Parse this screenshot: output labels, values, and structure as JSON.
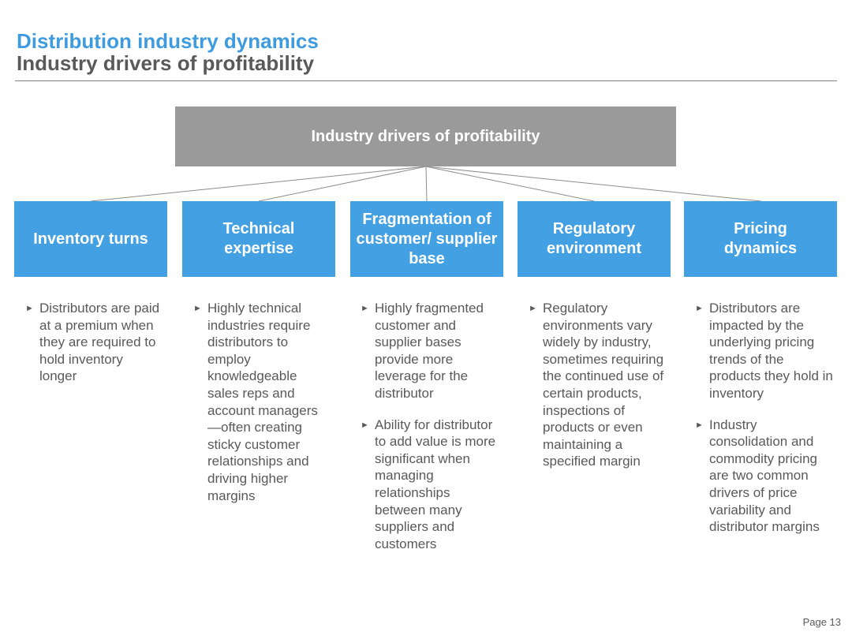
{
  "header": {
    "title": "Distribution industry dynamics",
    "subtitle": "Industry drivers of profitability"
  },
  "diagram": {
    "root": {
      "label": "Industry drivers of profitability"
    },
    "drivers": [
      {
        "label": "Inventory turns",
        "bullets": [
          "Distributors are paid at a premium when they are required to hold inventory longer"
        ]
      },
      {
        "label": "Technical expertise",
        "bullets": [
          "Highly technical industries require distributors to employ knowledgeable sales reps and account managers—often creating sticky customer relationships and driving higher margins"
        ]
      },
      {
        "label": "Fragmentation of customer/ supplier base",
        "bullets": [
          "Highly fragmented customer and supplier bases provide more leverage for the distributor",
          "Ability for distributor to add value is more significant when managing relationships between many suppliers and customers"
        ]
      },
      {
        "label": "Regulatory environment",
        "bullets": [
          "Regulatory environments vary widely by industry, sometimes requiring the continued use of certain products, inspections of products or even maintaining a specified margin"
        ]
      },
      {
        "label": "Pricing dynamics",
        "bullets": [
          "Distributors are impacted by the underlying pricing trends of the products they hold in inventory",
          "Industry consolidation and commodity pricing are two common drivers of price variability and distributor margins"
        ]
      }
    ]
  },
  "footer": {
    "page": "Page 13"
  },
  "colors": {
    "title_blue": "#3f9be0",
    "subtitle_gray": "#595959",
    "root_box": "#9a9a9a",
    "driver_box": "#42a0e3",
    "connector": "#8c8c8c"
  },
  "icons": {
    "bullet": "triangle-right-icon"
  }
}
